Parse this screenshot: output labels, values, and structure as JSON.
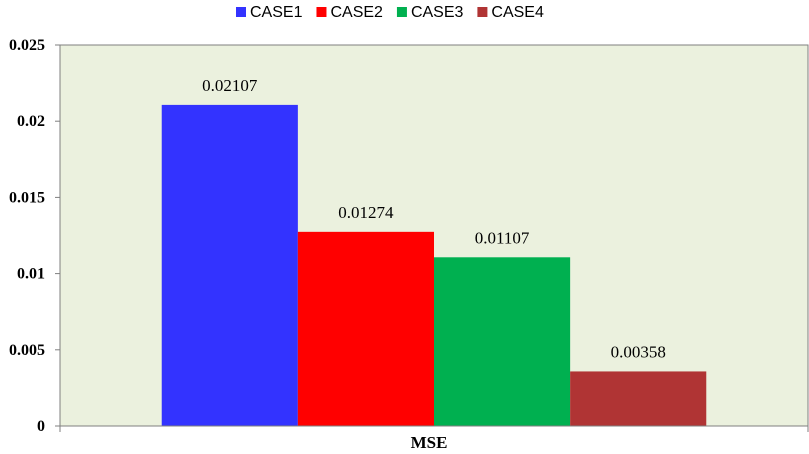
{
  "chart_data": {
    "type": "bar",
    "categories": [
      "MSE"
    ],
    "series": [
      {
        "name": "CASE1",
        "values": [
          0.02107
        ],
        "color": "#3333ff"
      },
      {
        "name": "CASE2",
        "values": [
          0.01274
        ],
        "color": "#ff0000"
      },
      {
        "name": "CASE3",
        "values": [
          0.01107
        ],
        "color": "#00b050"
      },
      {
        "name": "CASE4",
        "values": [
          0.00358
        ],
        "color": "#b03434"
      }
    ],
    "data_labels": [
      "0.02107",
      "0.01274",
      "0.01107",
      "0.00358"
    ],
    "y_tick_labels": [
      "0",
      "0.005",
      "0.01",
      "0.015",
      "0.02",
      "0.025"
    ],
    "ylim": [
      0,
      0.025
    ],
    "title": "",
    "xlabel": "",
    "ylabel": "",
    "legend_position": "top",
    "grid": false,
    "plot_background": "#ebf1de"
  }
}
